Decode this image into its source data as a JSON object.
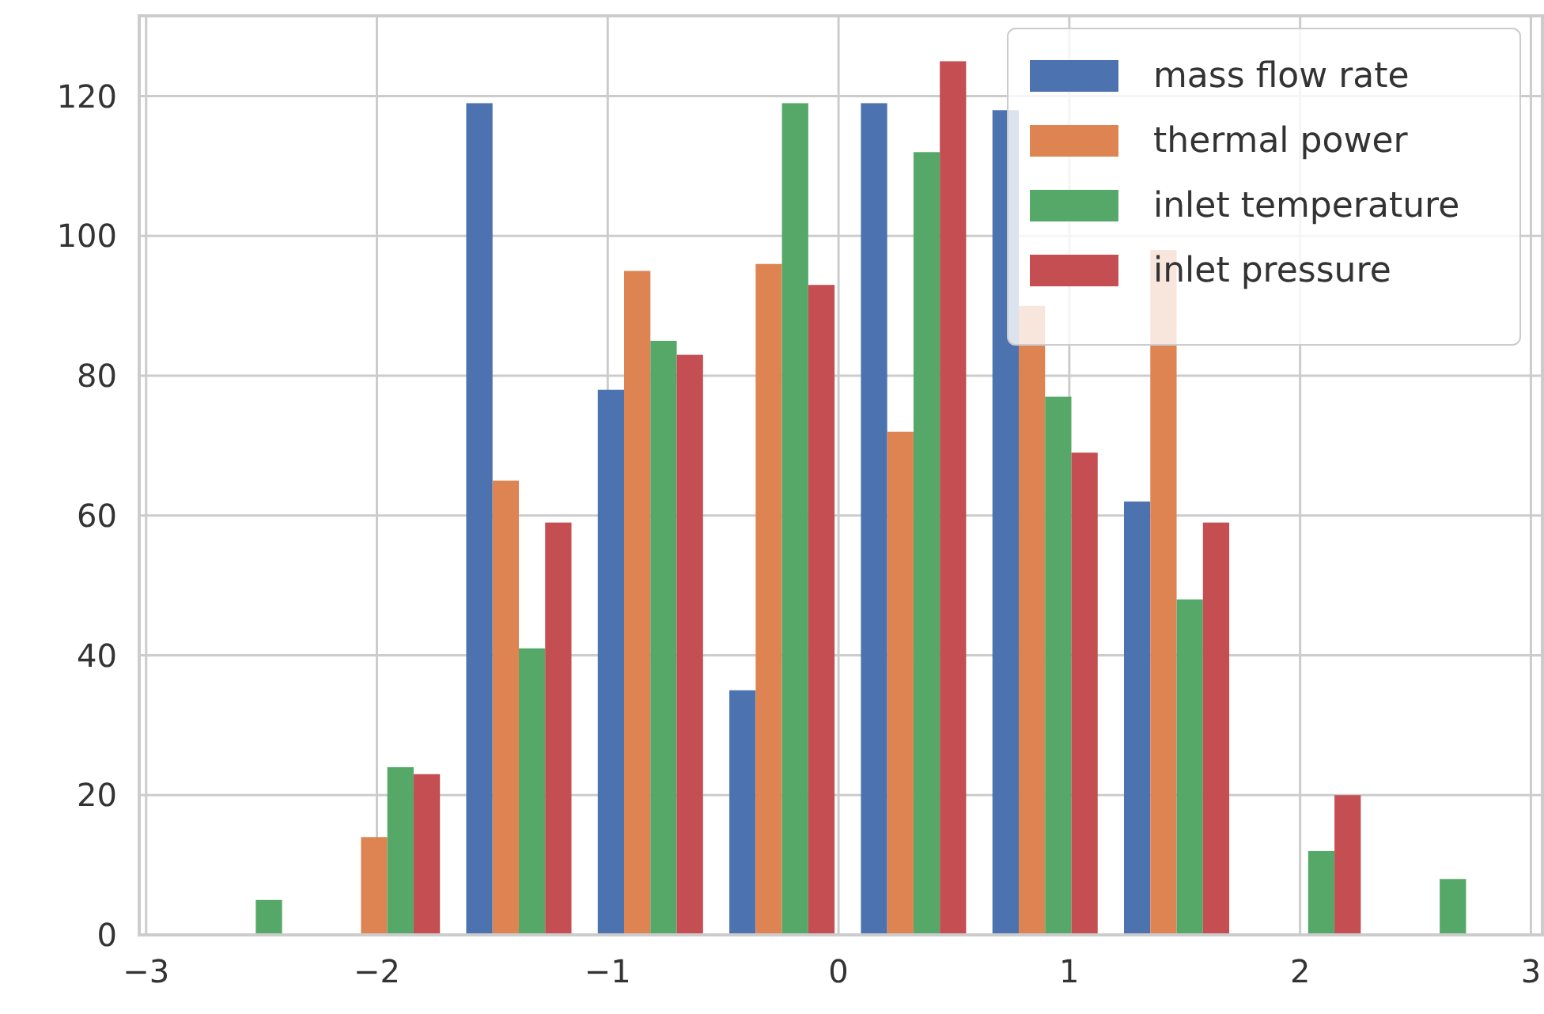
{
  "chart_data": {
    "type": "histogram",
    "bins": [
      -2.81,
      -2.24,
      -1.67,
      -1.1,
      -0.53,
      0.04,
      0.61,
      1.18,
      1.75,
      2.32,
      2.89
    ],
    "series": [
      {
        "name": "mass flow rate",
        "color": "#4c72b0",
        "values": [
          0,
          0,
          119,
          78,
          35,
          119,
          118,
          62,
          0,
          0
        ]
      },
      {
        "name": "thermal power",
        "color": "#dd8452",
        "values": [
          0,
          14,
          65,
          95,
          96,
          72,
          90,
          98,
          0,
          0
        ]
      },
      {
        "name": "inlet temperature",
        "color": "#55a868",
        "values": [
          5,
          24,
          41,
          85,
          119,
          112,
          77,
          48,
          12,
          8
        ]
      },
      {
        "name": "inlet pressure",
        "color": "#c44e52",
        "values": [
          0,
          23,
          59,
          83,
          93,
          125,
          69,
          59,
          20,
          0
        ]
      }
    ],
    "xlim": [
      -3.03,
      3.05
    ],
    "ylim": [
      0,
      131.5
    ],
    "xticks": [
      {
        "value": -3,
        "label": "−3"
      },
      {
        "value": -2,
        "label": "−2"
      },
      {
        "value": -1,
        "label": "−1"
      },
      0,
      1,
      2,
      3
    ],
    "yticks": [
      0,
      20,
      40,
      60,
      80,
      100,
      120
    ],
    "grid": true,
    "legend": "top right"
  }
}
